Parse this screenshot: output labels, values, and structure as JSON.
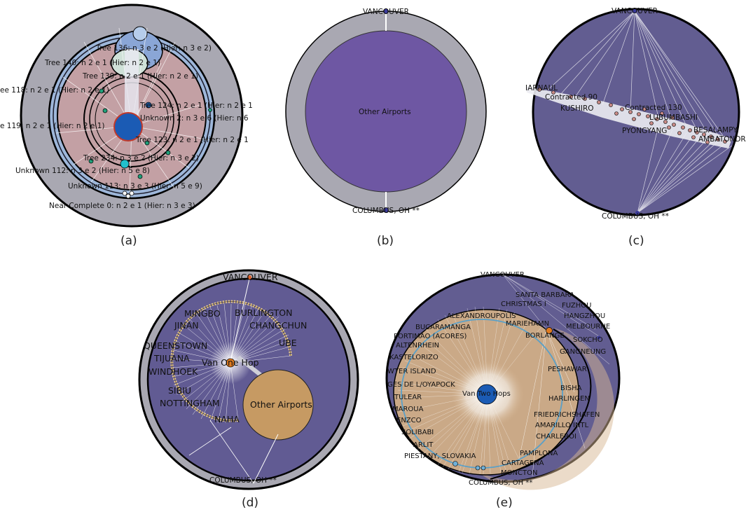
{
  "panels": {
    "a": {
      "caption": "(a)",
      "labels": [
        "Tree 136: n 3 e 2 (Hier: n 3 e 2)",
        "Tree 140: n 2 e 1 (Hier: n 2 e 1)",
        "Tree 139: n 2 e 1 (Hier: n 2 e 1)",
        "ee 118: n 2 e 1 (Hier: n 2 e 1)",
        "Tree 124: n 2 e 1 (Hier: n 2 e 1",
        "Unknown 2: n 3 e 6 (Hier: n 6",
        "e 119: n 2 e 1 (Hier: n 2 e 1)",
        "Tree 123: n 2 e 1 (Hier: n 2 e 1",
        "Tree 234: n 3 e 2 (Hier: n 3 e 2)",
        "Unknown 112: n 3 e 2 (Hier: n 5 e 8)",
        "Unknown 113: n 3 e 3 (Hier: n 5 e 9)",
        "Near Complete 0: n 2 e 1 (Hier: n 3 e 3)"
      ]
    },
    "b": {
      "caption": "(b)",
      "top_label": "VANCOUVER",
      "center_label": "Other Airports",
      "bottom_label": "COLUMBUS, OH **"
    },
    "c": {
      "caption": "(c)",
      "top_label": "VANCOUVER",
      "bottom_label": "COLUMBUS, OH **",
      "labels": [
        "IARNAUL",
        "Contracted 90",
        "KUSHIRO",
        "Contracted 130",
        "LUBUMBASHI",
        "PYONGYANG",
        "BESALAMPY",
        "AMBATONDR"
      ]
    },
    "d": {
      "caption": "(d)",
      "top_label": "VANCOUVER",
      "bottom_label": "COLUMBUS, OH **",
      "hub_label": "Van One Hop",
      "other_label": "Other Airports",
      "labels": [
        "MINGBO",
        "BURLINGTON",
        "JINAN",
        "CHANGCHUN",
        "UBE",
        "QUEENSTOWN",
        "TIJUANA",
        "WINDHOEK",
        "SIBIU",
        "NOTTINGHAM",
        "NAHA"
      ]
    },
    "e": {
      "caption": "(e)",
      "top_label": "VANCOUVER",
      "bottom_label": "COLUMBUS, OH **",
      "hub_label": "Van Two Hops",
      "labels": [
        "SANTA BARBARA",
        "CHRISTMAS I",
        "FUZHOU",
        "HANGZHOU",
        "ALEXANDROUPOLIS",
        "MARIEHAMN",
        "MELBOURNE",
        "BUCARAMANGA",
        "BORLANGE",
        "SOKCHO",
        "PORTIMAO (ACORES)",
        "ALTENRHEIN",
        "GANGNEUNG",
        "KASTELORIZO",
        "PESHAWAR",
        "WTER ISLAND",
        "GES DE L/OYAPOCK",
        "BISHA",
        "HARLINGEN",
        "TULEAR",
        "FRIEDRICHSHAFEN",
        "MAROUA",
        "AMARILLO INTL",
        "ENZCO",
        "CHARLEROI",
        "SOLIBABI",
        "ARLIT",
        "PAMPLONA",
        "PIESTANY, SLOVAKIA",
        "CARTAGENA",
        "MONCTON"
      ]
    }
  }
}
